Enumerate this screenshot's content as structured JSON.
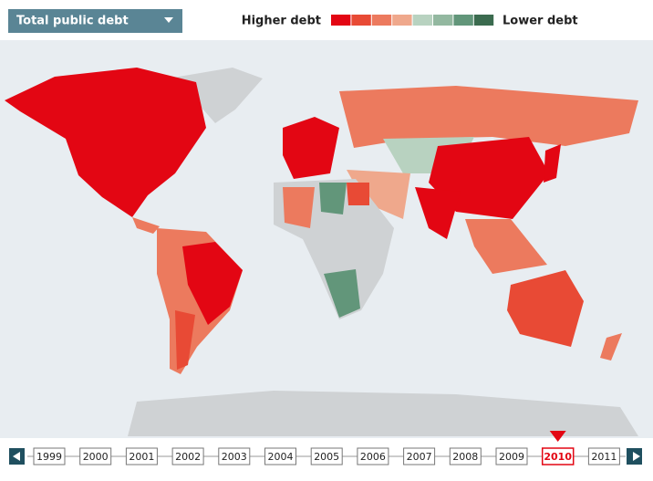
{
  "header": {
    "dropdown": "Total public debt",
    "legend": {
      "high_label": "Higher debt",
      "low_label": "Lower debt",
      "colors": [
        "#e30613",
        "#e84a35",
        "#ec7a5e",
        "#efa88c",
        "#b8d2c0",
        "#93b8a0",
        "#62967a",
        "#3b6b4f"
      ]
    }
  },
  "timeline": {
    "years": [
      {
        "label": "1999"
      },
      {
        "label": "2000"
      },
      {
        "label": "2001"
      },
      {
        "label": "2002"
      },
      {
        "label": "2003"
      },
      {
        "label": "2004"
      },
      {
        "label": "2005"
      },
      {
        "label": "2006"
      },
      {
        "label": "2007"
      },
      {
        "label": "2008"
      },
      {
        "label": "2009"
      },
      {
        "label": "2010",
        "selected": true
      },
      {
        "label": "2011"
      }
    ]
  }
}
